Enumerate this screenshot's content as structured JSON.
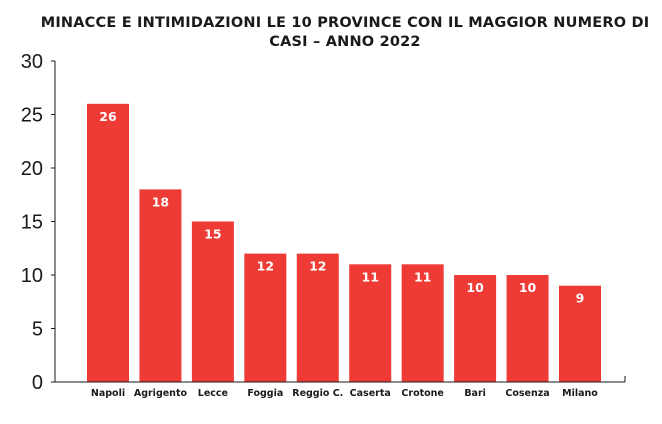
{
  "chart_data": {
    "type": "bar",
    "title_lines": [
      "MINACCE E INTIMIDAZIONI LE 10 PROVINCE CON IL MAGGIOR NUMERO DI",
      "CASI – ANNO 2022"
    ],
    "categories": [
      "Napoli",
      "Agrigento",
      "Lecce",
      "Foggia",
      "Reggio C.",
      "Caserta",
      "Crotone",
      "Bari",
      "Cosenza",
      "Milano"
    ],
    "values": [
      26,
      18,
      15,
      12,
      12,
      11,
      11,
      10,
      10,
      9
    ],
    "yticks": [
      "0",
      "5",
      "10",
      "15",
      "20",
      "25",
      "30"
    ],
    "ylim": [
      0,
      30
    ],
    "grid": false,
    "legend": "none",
    "bar_color": "#ee3b35",
    "axis_color": "#1a1a1a"
  }
}
